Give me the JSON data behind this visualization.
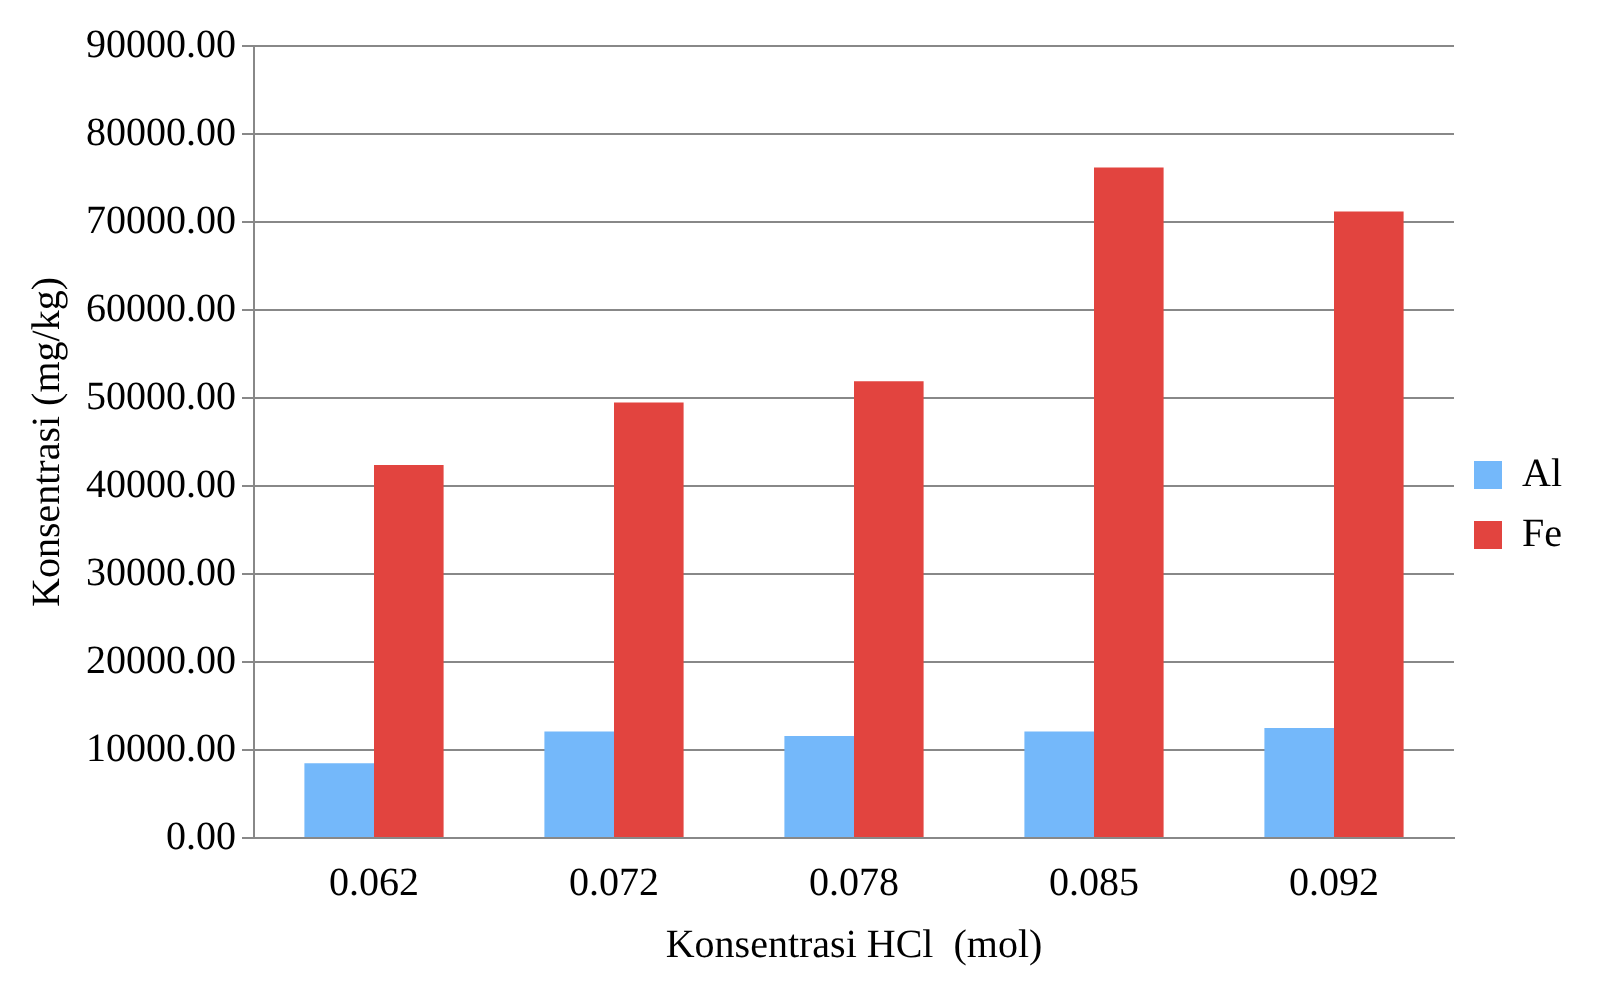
{
  "chart_data": {
    "type": "bar",
    "xlabel": "Konsentrasi HCl  (mol)",
    "ylabel": "Konsentrasi (mg/kg)",
    "categories": [
      "0.062",
      "0.072",
      "0.078",
      "0.085",
      "0.092"
    ],
    "series": [
      {
        "name": "Al",
        "color": "#74b8fa",
        "values": [
          8500,
          12100,
          11600,
          12100,
          12500
        ]
      },
      {
        "name": "Fe",
        "color": "#e2443f",
        "values": [
          42400,
          49500,
          51900,
          76200,
          71200
        ]
      }
    ],
    "ylim": [
      0,
      90000
    ],
    "yticks": [
      {
        "value": 0,
        "label": "0.00"
      },
      {
        "value": 10000,
        "label": "10000.00"
      },
      {
        "value": 20000,
        "label": "20000.00"
      },
      {
        "value": 30000,
        "label": "30000.00"
      },
      {
        "value": 40000,
        "label": "40000.00"
      },
      {
        "value": 50000,
        "label": "50000.00"
      },
      {
        "value": 60000,
        "label": "60000.00"
      },
      {
        "value": 70000,
        "label": "70000.00"
      },
      {
        "value": 80000,
        "label": "80000.00"
      },
      {
        "value": 90000,
        "label": "90000.00"
      }
    ],
    "grid": "y",
    "legend": "right"
  }
}
